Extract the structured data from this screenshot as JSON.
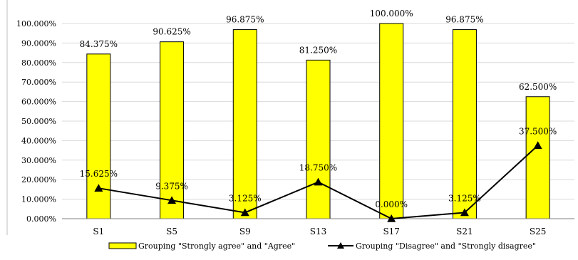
{
  "chart_data": {
    "type": "bar",
    "categories": [
      "S1",
      "S5",
      "S9",
      "S13",
      "S17",
      "S21",
      "S25"
    ],
    "series": [
      {
        "name": "Grouping \"Strongly agree\" and \"Agree\"",
        "type": "bar",
        "color": "#FFFF00",
        "values": [
          84.375,
          90.625,
          96.875,
          81.25,
          100.0,
          96.875,
          62.5
        ],
        "labels": [
          "84.375%",
          "90.625%",
          "96.875%",
          "81.250%",
          "100.000%",
          "96.875%",
          "62.500%"
        ]
      },
      {
        "name": "Grouping \"Disagree\" and \"Strongly disagree\"",
        "type": "line",
        "color": "#000000",
        "marker": "triangle",
        "values": [
          15.625,
          9.375,
          3.125,
          18.75,
          0.0,
          3.125,
          37.5
        ],
        "labels": [
          "15.625%",
          "9.375%",
          "3.125%",
          "18.750%",
          "0.000%",
          "3.125%",
          "37.500%"
        ]
      }
    ],
    "ylim": [
      0,
      100
    ],
    "yticks": [
      0,
      10,
      20,
      30,
      40,
      50,
      60,
      70,
      80,
      90,
      100
    ],
    "ytick_labels": [
      "0.000%",
      "10.000%",
      "20.000%",
      "30.000%",
      "40.000%",
      "50.000%",
      "60.000%",
      "70.000%",
      "80.000%",
      "90.000%",
      "100.000%"
    ],
    "title": "",
    "xlabel": "",
    "ylabel": "",
    "grid": true,
    "legend_position": "bottom"
  }
}
